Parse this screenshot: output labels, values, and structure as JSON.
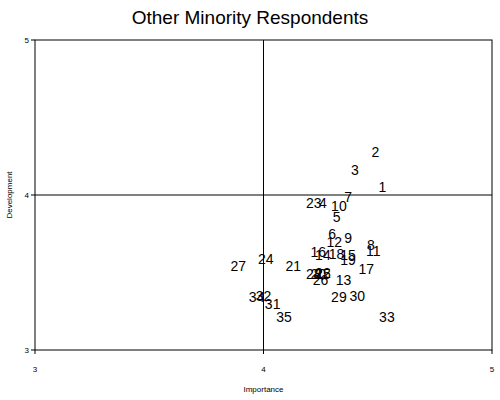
{
  "chart_data": {
    "type": "scatter",
    "title": "Other Minority Respondents",
    "x_label": "Importance",
    "y_label": "Development",
    "xlim": [
      3,
      5
    ],
    "ylim": [
      3,
      5
    ],
    "xticks": [
      3,
      4,
      5
    ],
    "yticks": [
      3,
      4,
      5
    ],
    "reference_lines": {
      "x": [
        4
      ],
      "y": [
        4
      ]
    },
    "marker": "label",
    "color": "#000000",
    "labels": [
      "1",
      "2",
      "3",
      "4",
      "5",
      "6",
      "7",
      "8",
      "9",
      "10",
      "11",
      "12",
      "13",
      "14",
      "15",
      "16",
      "17",
      "18",
      "19",
      "20",
      "21",
      "22",
      "23",
      "24",
      "25",
      "26",
      "27",
      "28",
      "29",
      "30",
      "31",
      "32",
      "33",
      "34",
      "35"
    ],
    "x": [
      4.52,
      4.49,
      4.4,
      4.26,
      4.32,
      4.3,
      4.37,
      4.47,
      4.37,
      4.33,
      4.48,
      4.31,
      4.35,
      4.26,
      4.37,
      4.24,
      4.45,
      4.32,
      4.37,
      4.24,
      4.13,
      4.26,
      4.22,
      4.01,
      4.26,
      4.25,
      3.89,
      4.22,
      4.33,
      4.41,
      4.04,
      4.0,
      4.54,
      3.97,
      4.09
    ],
    "y": [
      4.05,
      4.28,
      4.16,
      3.95,
      3.86,
      3.75,
      3.99,
      3.68,
      3.72,
      3.93,
      3.64,
      3.7,
      3.45,
      3.61,
      3.61,
      3.63,
      3.52,
      3.62,
      3.58,
      3.49,
      3.54,
      3.5,
      3.95,
      3.59,
      3.49,
      3.45,
      3.54,
      3.49,
      3.34,
      3.35,
      3.3,
      3.35,
      3.21,
      3.34,
      3.21
    ]
  }
}
